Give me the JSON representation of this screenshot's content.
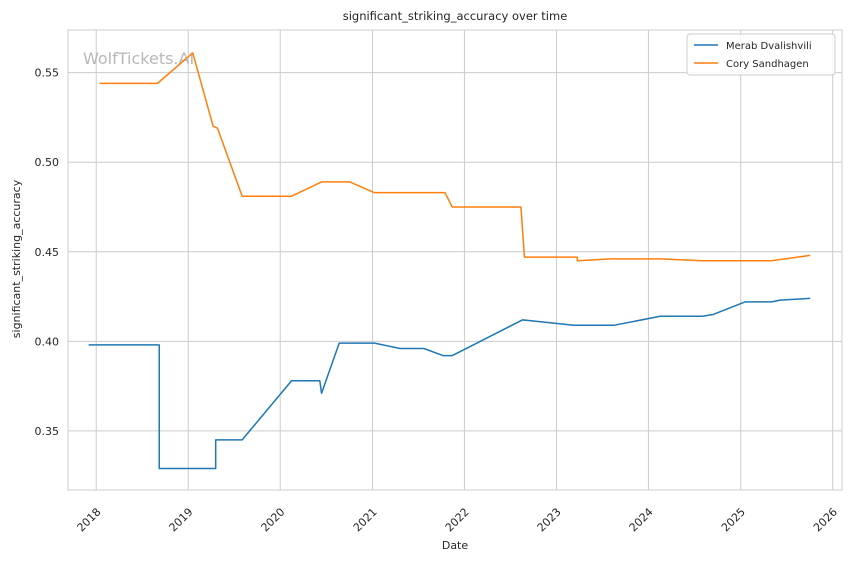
{
  "watermark": "WolfTickets.AI",
  "chart_data": {
    "type": "line",
    "title": "significant_striking_accuracy over time",
    "xlabel": "Date",
    "ylabel": "significant_striking_accuracy",
    "x_axis_type": "date",
    "xlim": [
      "2017-09-11",
      "2026-02-07"
    ],
    "ylim": [
      0.317,
      0.5738
    ],
    "x_ticks": [
      "2018-01-01",
      "2019-01-01",
      "2020-01-01",
      "2021-01-01",
      "2022-01-01",
      "2023-01-01",
      "2024-01-01",
      "2025-01-01",
      "2026-01-01"
    ],
    "x_tick_labels": [
      "2018",
      "2019",
      "2020",
      "2021",
      "2022",
      "2023",
      "2024",
      "2025",
      "2026"
    ],
    "y_ticks": [
      0.35,
      0.4,
      0.45,
      0.5,
      0.55
    ],
    "y_tick_labels": [
      "0.35",
      "0.40",
      "0.45",
      "0.50",
      "0.55"
    ],
    "grid": true,
    "legend_position": "top-right",
    "series": [
      {
        "name": "Merab Dvalishvili",
        "color": "#1f77b4",
        "points": [
          [
            "2017-12-02",
            0.398
          ],
          [
            "2018-09-08",
            0.398
          ],
          [
            "2018-09-08",
            0.329
          ],
          [
            "2019-04-20",
            0.329
          ],
          [
            "2019-04-20",
            0.345
          ],
          [
            "2019-08-03",
            0.345
          ],
          [
            "2020-02-15",
            0.378
          ],
          [
            "2020-06-06",
            0.378
          ],
          [
            "2020-06-13",
            0.371
          ],
          [
            "2020-08-22",
            0.399
          ],
          [
            "2021-01-09",
            0.399
          ],
          [
            "2021-04-21",
            0.396
          ],
          [
            "2021-07-24",
            0.396
          ],
          [
            "2021-10-09",
            0.392
          ],
          [
            "2021-11-13",
            0.392
          ],
          [
            "2022-08-20",
            0.412
          ],
          [
            "2023-03-11",
            0.409
          ],
          [
            "2023-08-19",
            0.409
          ],
          [
            "2024-02-17",
            0.414
          ],
          [
            "2024-08-03",
            0.414
          ],
          [
            "2024-09-14",
            0.415
          ],
          [
            "2025-01-18",
            0.422
          ],
          [
            "2025-05-03",
            0.422
          ],
          [
            "2025-06-07",
            0.423
          ],
          [
            "2025-10-04",
            0.424
          ]
        ]
      },
      {
        "name": "Cory Sandhagen",
        "color": "#ff7f0e",
        "points": [
          [
            "2018-01-14",
            0.544
          ],
          [
            "2018-09-01",
            0.544
          ],
          [
            "2019-01-19",
            0.561
          ],
          [
            "2019-04-10",
            0.52
          ],
          [
            "2019-04-27",
            0.519
          ],
          [
            "2019-08-03",
            0.481
          ],
          [
            "2020-02-15",
            0.481
          ],
          [
            "2020-06-13",
            0.489
          ],
          [
            "2020-10-03",
            0.489
          ],
          [
            "2021-01-09",
            0.483
          ],
          [
            "2021-04-21",
            0.483
          ],
          [
            "2021-07-24",
            0.483
          ],
          [
            "2021-10-16",
            0.483
          ],
          [
            "2021-11-13",
            0.475
          ],
          [
            "2022-08-13",
            0.475
          ],
          [
            "2022-08-27",
            0.447
          ],
          [
            "2023-03-25",
            0.447
          ],
          [
            "2023-03-25",
            0.445
          ],
          [
            "2023-08-05",
            0.446
          ],
          [
            "2024-02-17",
            0.446
          ],
          [
            "2024-08-03",
            0.445
          ],
          [
            "2024-09-14",
            0.445
          ],
          [
            "2025-05-03",
            0.445
          ],
          [
            "2025-10-04",
            0.448
          ]
        ]
      }
    ]
  }
}
